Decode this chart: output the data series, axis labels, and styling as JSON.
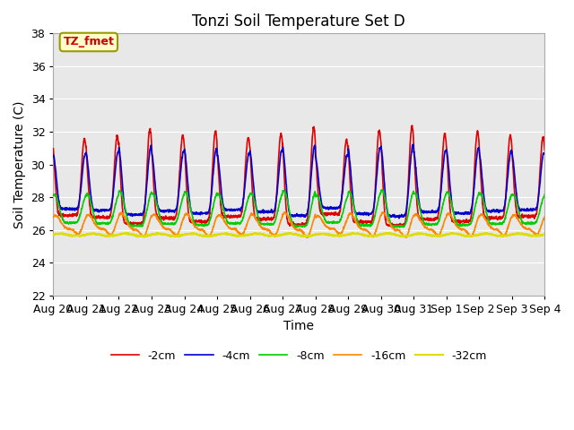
{
  "title": "Tonzi Soil Temperature Set D",
  "xlabel": "Time",
  "ylabel": "Soil Temperature (C)",
  "ylim": [
    22,
    38
  ],
  "x_tick_labels": [
    "Aug 20",
    "Aug 21",
    "Aug 22",
    "Aug 23",
    "Aug 24",
    "Aug 25",
    "Aug 26",
    "Aug 27",
    "Aug 28",
    "Aug 29",
    "Aug 30",
    "Aug 31",
    "Sep 1",
    "Sep 2",
    "Sep 3",
    "Sep 4"
  ],
  "legend_labels": [
    "-2cm",
    "-4cm",
    "-8cm",
    "-16cm",
    "-32cm"
  ],
  "legend_colors": [
    "#dd0000",
    "#0000cc",
    "#00cc00",
    "#ff8800",
    "#dddd00"
  ],
  "line_widths": [
    1.2,
    1.2,
    1.2,
    1.2,
    1.5
  ],
  "annotation_text": "TZ_fmet",
  "annotation_color": "#cc0000",
  "annotation_bg": "#ffffcc",
  "annotation_border": "#999900",
  "bg_color": "#e8e8e8",
  "grid_color": "#ffffff"
}
